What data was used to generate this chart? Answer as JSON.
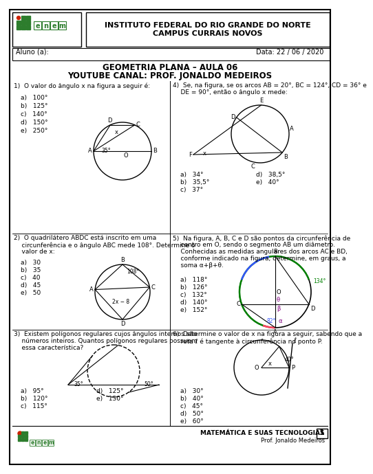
{
  "title_line1": "GEOMETRIA PLANA – AULA 06",
  "title_line2": "YOUTUBE CANAL: PROF. JONALDO MEDEIROS",
  "header_inst": "INSTITUTO FEDERAL DO RIO GRANDE DO NORTE",
  "header_campus": "CAMPUS CURRAIS NOVOS",
  "aluno": "Aluno (a):",
  "data_label": "Data: 22 / 06 / 2020",
  "bg_color": "#ffffff",
  "green_color": "#2d7d2d",
  "red_color": "#cc2200",
  "q1_text": "1)  O valor do ângulo x na figura a seguir é:",
  "q1_opts": [
    "a)   100°",
    "b)   125°",
    "c)   140°",
    "d)   150°",
    "e)   250°"
  ],
  "q2_text1": "2)  O quadrilátero ABDC está inscrito em uma",
  "q2_text2": "    circunferência e o ângulo ABC mede 108°. Determine o",
  "q2_text3": "    valor de x:",
  "q2_opts": [
    "a)   30",
    "b)   35",
    "c)   40",
    "d)   45",
    "e)   50"
  ],
  "q3_text1": "3)  Existem polígonos regulares cujos ângulos internos são",
  "q3_text2": "    números inteiros. Quantos polígonos regulares possuem",
  "q3_text3": "    essa característica?",
  "q3_opts_left": [
    "a)   95°",
    "b)   120°",
    "c)   115°"
  ],
  "q3_opts_right": [
    "d)   125°",
    "e)   130°"
  ],
  "q4_text1": "4)  Se, na figura, se os arcos AB = 20°, BC = 124°, CD = 36° e",
  "q4_text2": "    DE = 90°, então o ângulo x mede:",
  "q4_opts_left": [
    "a)   34°",
    "b)   35,5°",
    "c)   37°"
  ],
  "q4_opts_right": [
    "d)   38,5°",
    "e)   40°"
  ],
  "q5_text1": "5)  Na figura, A, B, C e D são pontos da circunferência de",
  "q5_text2": "    centro em O, sendo o segmento AB um diâmetro.",
  "q5_text3": "    Conhecidas as medidas angulares dos arcos AC e BD,",
  "q5_text4": "    conforme indicado na figura, determine, em graus, a",
  "q5_text5": "    soma α+β+θ.",
  "q5_opts": [
    "a)   118°",
    "b)   126°",
    "c)   132°",
    "d)   140°",
    "e)   152°"
  ],
  "q6_text1": "6)  Determine o valor de x na figura a seguir, sabendo que a",
  "q6_text2": "    reta ℓ é tangente à circunferência no ponto P.",
  "q6_opts": [
    "a)   30°",
    "b)   40°",
    "c)   45°",
    "d)   50°",
    "e)   60°"
  ]
}
